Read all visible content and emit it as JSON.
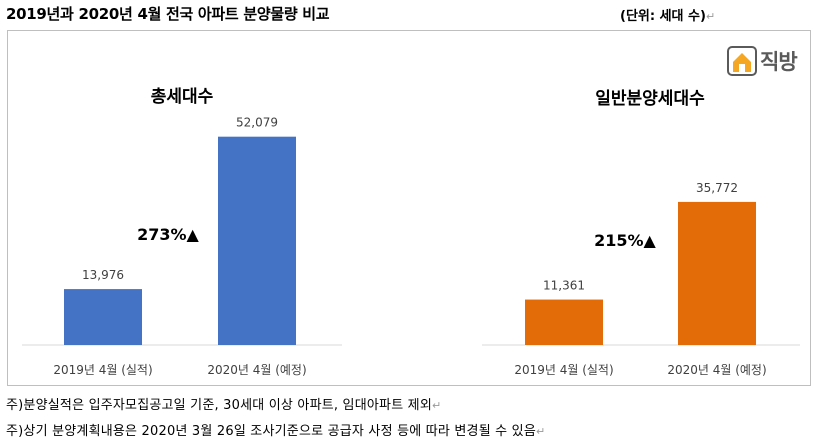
{
  "header": {
    "title": "2019년과 2020년 4월 전국 아파트 분양물량 비교",
    "unit": "(단위: 세대 수)",
    "unit_mark": "↵"
  },
  "logo": {
    "text": "직방",
    "icon": "house-icon",
    "color": "#f5a623"
  },
  "chart_data": [
    {
      "type": "bar",
      "title": "총세대수",
      "categories": [
        "2019년 4월 (실적)",
        "2020년 4월 (예정)"
      ],
      "values": [
        13976,
        52079
      ],
      "value_labels": [
        "13,976",
        "52,079"
      ],
      "color": "#4472c4",
      "growth_label": "273%▲",
      "ylim": [
        0,
        55000
      ]
    },
    {
      "type": "bar",
      "title": "일반분양세대수",
      "categories": [
        "2019년 4월 (실적)",
        "2020년 4월 (예정)"
      ],
      "values": [
        11361,
        35772
      ],
      "value_labels": [
        "11,361",
        "35,772"
      ],
      "color": "#e36c09",
      "growth_label": "215%▲",
      "ylim": [
        0,
        55000
      ]
    }
  ],
  "notes": [
    {
      "text": "주)분양실적은 입주자모집공고일 기준, 30세대 이상 아파트, 임대아파트 제외",
      "mark": "↵"
    },
    {
      "text": "주)상기 분양계획내용은 2020년 3월 26일 조사기준으로 공급자 사정 등에 따라 변경될 수 있음",
      "mark": "↵"
    }
  ]
}
